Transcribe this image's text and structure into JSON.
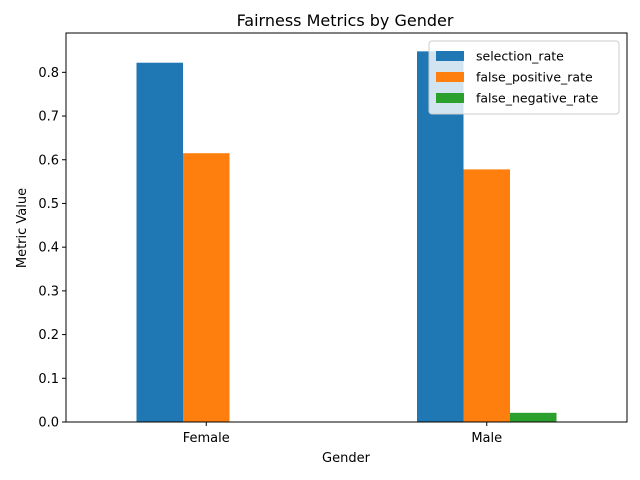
{
  "chart_data": {
    "type": "bar",
    "title": "Fairness Metrics by Gender",
    "xlabel": "Gender",
    "ylabel": "Metric Value",
    "categories": [
      "Female",
      "Male"
    ],
    "series": [
      {
        "name": "selection_rate",
        "color": "#1f77b4",
        "values": [
          0.822,
          0.848
        ]
      },
      {
        "name": "false_positive_rate",
        "color": "#ff7f0e",
        "values": [
          0.615,
          0.578
        ]
      },
      {
        "name": "false_negative_rate",
        "color": "#2ca02c",
        "values": [
          0.0,
          0.021
        ]
      }
    ],
    "ylim": [
      0,
      0.89
    ],
    "yticks": [
      0.0,
      0.1,
      0.2,
      0.3,
      0.4,
      0.5,
      0.6,
      0.7,
      0.8
    ],
    "ytick_labels": [
      "0.0",
      "0.1",
      "0.2",
      "0.3",
      "0.4",
      "0.5",
      "0.6",
      "0.7",
      "0.8"
    ],
    "grid": false,
    "legend": "top-right"
  }
}
